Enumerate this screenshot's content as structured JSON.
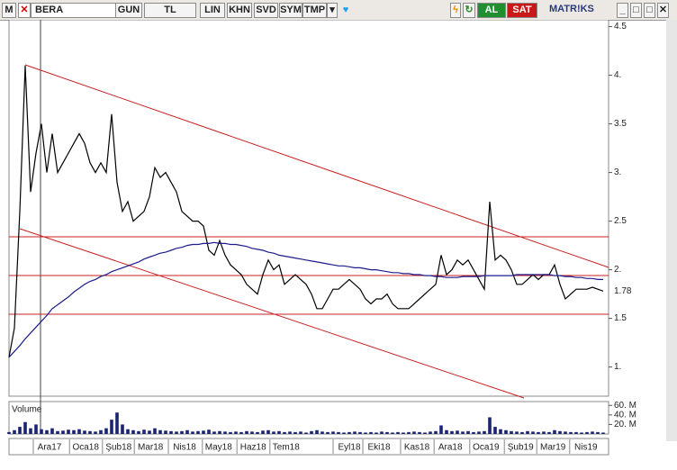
{
  "toolbar": {
    "symbol_box": "M",
    "symbol": "BERA",
    "buttons": [
      "GUN",
      "TL",
      "LIN",
      "KHN",
      "SVD",
      "SYM",
      "TMP"
    ],
    "buy": "AL",
    "sell": "SAT",
    "brand": "MATR!KS"
  },
  "chart_data": {
    "type": "line",
    "xlim": [
      0,
      111
    ],
    "xticks": [
      {
        "value": 7.5,
        "label": "Ara17"
      },
      {
        "value": 14.2,
        "label": "Oca18"
      },
      {
        "value": 20.3,
        "label": "Şub18"
      },
      {
        "value": 26.2,
        "label": "Mar18"
      },
      {
        "value": 32.5,
        "label": "Nis18"
      },
      {
        "value": 38.8,
        "label": "May18"
      },
      {
        "value": 45.2,
        "label": "Haz18"
      },
      {
        "value": 51.3,
        "label": "Tem18"
      },
      {
        "value": 63,
        "label": "Eyl18"
      },
      {
        "value": 68.5,
        "label": "Eki18"
      },
      {
        "value": 75.5,
        "label": "Kas18"
      },
      {
        "value": 81.7,
        "label": "Ara18"
      },
      {
        "value": 88.3,
        "label": "Oca19"
      },
      {
        "value": 94.7,
        "label": "Şub19"
      },
      {
        "value": 100.7,
        "label": "Mar19"
      },
      {
        "value": 106.8,
        "label": "Nis19"
      }
    ],
    "ylim": [
      0.7,
      4.57
    ],
    "yticks": [
      {
        "value": 1,
        "label": "1."
      },
      1.5,
      {
        "value": 2,
        "label": "2."
      },
      2.5,
      {
        "value": 3,
        "label": "3."
      },
      3.5,
      {
        "value": 4,
        "label": "4."
      },
      4.5
    ],
    "last_value": 1.78,
    "series": [
      {
        "color": "#000000",
        "values": [
          1.1,
          1.4,
          2.6,
          4.1,
          2.8,
          3.2,
          3.5,
          3.0,
          3.4,
          3.0,
          3.1,
          3.2,
          3.3,
          3.4,
          3.3,
          3.1,
          3.0,
          3.1,
          3.0,
          3.6,
          2.9,
          2.6,
          2.7,
          2.5,
          2.55,
          2.6,
          2.75,
          3.05,
          2.95,
          3.0,
          2.9,
          2.8,
          2.6,
          2.55,
          2.5,
          2.5,
          2.45,
          2.2,
          2.15,
          2.3,
          2.15,
          2.05,
          2.0,
          1.95,
          1.85,
          1.8,
          1.75,
          1.95,
          2.1,
          2.0,
          2.05,
          1.85,
          1.9,
          1.95,
          1.9,
          1.85,
          1.75,
          1.6,
          1.6,
          1.7,
          1.8,
          1.8,
          1.85,
          1.9,
          1.85,
          1.8,
          1.7,
          1.65,
          1.7,
          1.7,
          1.75,
          1.65,
          1.6,
          1.6,
          1.6,
          1.65,
          1.7,
          1.75,
          1.8,
          1.85,
          2.15,
          1.95,
          2.0,
          2.1,
          2.05,
          2.1,
          2.0,
          1.9,
          1.8,
          2.7,
          2.1,
          2.15,
          2.1,
          2.0,
          1.85,
          1.85,
          1.9,
          1.95,
          1.9,
          1.95,
          1.95,
          2.05,
          1.85,
          1.7,
          1.75,
          1.8,
          1.8,
          1.8,
          1.82,
          1.8,
          1.78
        ]
      },
      {
        "color": "#1c1c8c",
        "values": [
          1.1,
          1.16,
          1.22,
          1.29,
          1.35,
          1.41,
          1.47,
          1.53,
          1.6,
          1.64,
          1.68,
          1.72,
          1.77,
          1.81,
          1.85,
          1.88,
          1.9,
          1.93,
          1.95,
          1.98,
          2.0,
          2.02,
          2.04,
          2.06,
          2.08,
          2.11,
          2.13,
          2.15,
          2.17,
          2.18,
          2.2,
          2.22,
          2.23,
          2.25,
          2.26,
          2.26,
          2.27,
          2.27,
          2.28,
          2.27,
          2.27,
          2.26,
          2.26,
          2.25,
          2.24,
          2.22,
          2.21,
          2.2,
          2.18,
          2.17,
          2.15,
          2.14,
          2.13,
          2.12,
          2.11,
          2.1,
          2.09,
          2.08,
          2.07,
          2.06,
          2.05,
          2.04,
          2.04,
          2.03,
          2.02,
          2.02,
          2.01,
          2.0,
          2.0,
          1.99,
          1.98,
          1.97,
          1.97,
          1.96,
          1.96,
          1.95,
          1.95,
          1.94,
          1.94,
          1.93,
          1.93,
          1.92,
          1.92,
          1.92,
          1.93,
          1.93,
          1.93,
          1.93,
          1.94,
          1.94,
          1.94,
          1.94,
          1.94,
          1.94,
          1.95,
          1.95,
          1.95,
          1.95,
          1.95,
          1.95,
          1.95,
          1.94,
          1.94,
          1.93,
          1.93,
          1.92,
          1.92,
          1.91,
          1.91,
          1.9,
          1.9
        ]
      }
    ],
    "volume": {
      "name": "Volume",
      "color": "#1a2470",
      "ylim": [
        0,
        68
      ],
      "yticks": [
        {
          "value": 20,
          "label": "20. M"
        },
        {
          "value": 40,
          "label": "40. M"
        },
        {
          "value": 60,
          "label": "60. M"
        }
      ],
      "values": [
        4,
        8,
        15,
        25,
        12,
        20,
        10,
        8,
        12,
        6,
        7,
        9,
        8,
        10,
        7,
        6,
        5,
        8,
        12,
        30,
        45,
        20,
        10,
        8,
        6,
        9,
        7,
        12,
        8,
        7,
        6,
        5,
        6,
        8,
        5,
        6,
        7,
        9,
        5,
        6,
        5,
        4,
        5,
        4,
        6,
        5,
        4,
        7,
        8,
        5,
        6,
        4,
        5,
        4,
        5,
        3,
        6,
        8,
        5,
        4,
        5,
        4,
        3,
        4,
        5,
        4,
        3,
        4,
        3,
        5,
        4,
        3,
        4,
        3,
        4,
        5,
        4,
        3,
        5,
        6,
        18,
        8,
        6,
        7,
        5,
        6,
        4,
        5,
        6,
        35,
        15,
        10,
        8,
        6,
        5,
        4,
        6,
        5,
        4,
        5,
        4,
        8,
        6,
        5,
        4,
        4,
        3,
        4,
        5,
        4,
        3
      ]
    }
  }
}
